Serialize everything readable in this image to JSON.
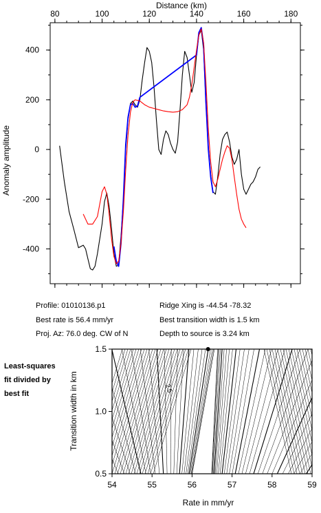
{
  "top_chart": {
    "xlabel": "Distance (km)",
    "ylabel": "Anomaly amplitude",
    "x_ticks": [
      "80",
      "100",
      "120",
      "140",
      "160",
      "180"
    ],
    "y_ticks": [
      "400",
      "200",
      "0",
      "-200",
      "-400"
    ]
  },
  "info": {
    "profile": "Profile: 01010136.p1",
    "best_rate": "Best rate is 56.4 mm/yr",
    "proj_az": "Proj. Az: 76.0 deg. CW of N",
    "ridge_xing": "Ridge Xing is -44.54 -78.32",
    "best_width": "Best transition width is 1.5 km",
    "depth": "Depth to source is   3.24 km"
  },
  "side_note": {
    "line1": "Least-squares",
    "line2": "fit divided by",
    "line3": "best fit"
  },
  "bottom_chart": {
    "xlabel": "Rate in mm/yr",
    "ylabel": "Transition width in km",
    "x_ticks": [
      "54",
      "55",
      "56",
      "57",
      "58",
      "59"
    ],
    "y_ticks": [
      "1.5",
      "1.0",
      "0.5"
    ],
    "contour_label": "2.5",
    "best_point": {
      "x": 56.4,
      "y": 1.5
    }
  },
  "chart_data": [
    {
      "type": "line",
      "xlim": [
        78,
        184
      ],
      "ylim": [
        -540,
        510
      ],
      "series": [
        {
          "color": "#000000",
          "points": [
            [
              82,
              15
            ],
            [
              84,
              -130
            ],
            [
              86,
              -250
            ],
            [
              88,
              -320
            ],
            [
              90,
              -395
            ],
            [
              92,
              -385
            ],
            [
              93,
              -400
            ],
            [
              94,
              -440
            ],
            [
              95,
              -480
            ],
            [
              96,
              -485
            ],
            [
              97,
              -470
            ],
            [
              98,
              -420
            ],
            [
              100,
              -300
            ],
            [
              101,
              -210
            ],
            [
              102,
              -175
            ],
            [
              103,
              -230
            ],
            [
              104,
              -320
            ],
            [
              105,
              -420
            ],
            [
              106,
              -470
            ],
            [
              107,
              -465
            ],
            [
              108,
              -350
            ],
            [
              109,
              -200
            ],
            [
              110,
              0
            ],
            [
              111,
              120
            ],
            [
              112,
              185
            ],
            [
              113,
              195
            ],
            [
              114,
              180
            ],
            [
              115,
              170
            ],
            [
              116,
              200
            ],
            [
              117,
              280
            ],
            [
              118,
              350
            ],
            [
              119,
              410
            ],
            [
              120,
              395
            ],
            [
              121,
              350
            ],
            [
              122,
              250
            ],
            [
              123,
              120
            ],
            [
              124,
              0
            ],
            [
              125,
              -20
            ],
            [
              126,
              40
            ],
            [
              127,
              75
            ],
            [
              128,
              60
            ],
            [
              129,
              25
            ],
            [
              130,
              0
            ],
            [
              131,
              -15
            ],
            [
              132,
              30
            ],
            [
              133,
              160
            ],
            [
              134,
              300
            ],
            [
              135,
              395
            ],
            [
              136,
              370
            ],
            [
              137,
              300
            ],
            [
              138,
              230
            ],
            [
              139,
              270
            ],
            [
              140,
              380
            ],
            [
              141,
              460
            ],
            [
              142,
              480
            ],
            [
              143,
              400
            ],
            [
              144,
              180
            ],
            [
              145,
              10
            ],
            [
              146,
              -100
            ],
            [
              147,
              -170
            ],
            [
              148,
              -180
            ],
            [
              149,
              -110
            ],
            [
              150,
              -20
            ],
            [
              151,
              40
            ],
            [
              152,
              60
            ],
            [
              153,
              70
            ],
            [
              154,
              30
            ],
            [
              155,
              -30
            ],
            [
              156,
              -60
            ],
            [
              157,
              -40
            ],
            [
              158,
              0
            ],
            [
              159,
              -100
            ],
            [
              160,
              -160
            ],
            [
              161,
              -180
            ],
            [
              162,
              -160
            ],
            [
              163,
              -140
            ],
            [
              164,
              -130
            ],
            [
              165,
              -110
            ],
            [
              166,
              -80
            ],
            [
              167,
              -70
            ]
          ]
        },
        {
          "color": "#0000ff",
          "points": [
            [
              105,
              -390
            ],
            [
              106,
              -450
            ],
            [
              107,
              -470
            ],
            [
              108,
              -380
            ],
            [
              109,
              -200
            ],
            [
              110,
              20
            ],
            [
              111,
              130
            ],
            [
              112,
              180
            ],
            [
              113,
              185
            ],
            [
              114,
              170
            ],
            [
              115,
              175
            ],
            [
              116,
              210
            ],
            [
              140,
              380
            ],
            [
              141,
              470
            ],
            [
              142,
              490
            ],
            [
              143,
              420
            ],
            [
              144,
              190
            ],
            [
              145,
              0
            ],
            [
              146,
              -110
            ],
            [
              147,
              -175
            ]
          ]
        },
        {
          "color": "#ff0000",
          "points": [
            [
              92,
              -260
            ],
            [
              94,
              -300
            ],
            [
              96,
              -300
            ],
            [
              98,
              -270
            ],
            [
              99,
              -220
            ],
            [
              100,
              -170
            ],
            [
              101,
              -150
            ],
            [
              102,
              -180
            ],
            [
              103,
              -260
            ],
            [
              104,
              -360
            ],
            [
              105,
              -430
            ],
            [
              106,
              -460
            ],
            [
              107,
              -450
            ],
            [
              108,
              -380
            ],
            [
              109,
              -250
            ],
            [
              110,
              -80
            ],
            [
              111,
              60
            ],
            [
              112,
              150
            ],
            [
              113,
              190
            ],
            [
              114,
              200
            ],
            [
              116,
              195
            ],
            [
              118,
              180
            ],
            [
              120,
              170
            ],
            [
              122,
              165
            ],
            [
              124,
              160
            ],
            [
              126,
              155
            ],
            [
              128,
              152
            ],
            [
              130,
              150
            ],
            [
              132,
              152
            ],
            [
              134,
              160
            ],
            [
              136,
              180
            ],
            [
              137,
              210
            ],
            [
              138,
              260
            ],
            [
              139,
              330
            ],
            [
              140,
              400
            ],
            [
              141,
              460
            ],
            [
              142,
              485
            ],
            [
              143,
              430
            ],
            [
              144,
              270
            ],
            [
              145,
              80
            ],
            [
              146,
              -50
            ],
            [
              147,
              -130
            ],
            [
              148,
              -150
            ],
            [
              149,
              -120
            ],
            [
              150,
              -80
            ],
            [
              151,
              -40
            ],
            [
              152,
              -10
            ],
            [
              153,
              15
            ],
            [
              154,
              5
            ],
            [
              155,
              -40
            ],
            [
              156,
              -110
            ],
            [
              157,
              -180
            ],
            [
              158,
              -240
            ],
            [
              159,
              -280
            ],
            [
              160,
              -300
            ],
            [
              161,
              -315
            ]
          ]
        }
      ]
    },
    {
      "type": "heatmap",
      "xlim": [
        54,
        59
      ],
      "ylim": [
        0.5,
        1.5
      ],
      "grid": false
    }
  ]
}
